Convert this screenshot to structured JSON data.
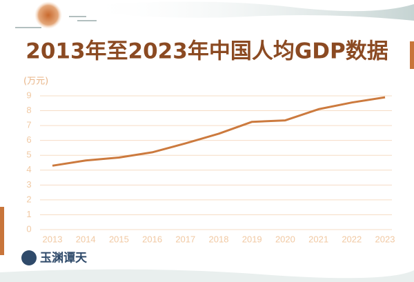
{
  "chart_data": {
    "type": "line",
    "title": "2013年至2023年中国人均GDP数据",
    "y_label": "(万元)",
    "brand": "玉渊谭天",
    "categories": [
      "2013",
      "2014",
      "2015",
      "2016",
      "2017",
      "2018",
      "2019",
      "2020",
      "2021",
      "2022",
      "2023"
    ],
    "values": [
      4.3,
      4.65,
      4.85,
      5.2,
      5.8,
      6.45,
      7.25,
      7.35,
      8.1,
      8.55,
      8.9
    ],
    "color": "#cc7a3e",
    "ylim": [
      0,
      9
    ],
    "yticks": [
      0,
      1,
      2,
      3,
      4,
      5,
      6,
      7,
      8,
      9
    ],
    "grid": true
  }
}
